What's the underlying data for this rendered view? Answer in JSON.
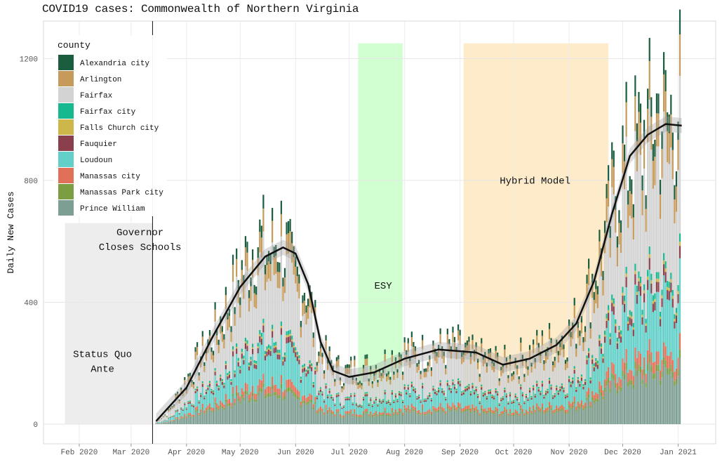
{
  "chart_data": {
    "type": "bar",
    "stacked": true,
    "title": "COVID19 cases: Commonwealth of Northern Virginia",
    "ylabel": "Daily New Cases",
    "xlabel": "",
    "ylim": [
      0,
      1300
    ],
    "xlim": [
      "2020-01-12",
      "2021-01-22"
    ],
    "grid": true,
    "legend_placement": "top-left",
    "legend_title": "county",
    "y_ticks": [
      0,
      400,
      800,
      1200
    ],
    "x_ticks": [
      {
        "date": "2020-02-01",
        "label": "Feb 2020"
      },
      {
        "date": "2020-03-01",
        "label": "Mar 2020"
      },
      {
        "date": "2020-04-01",
        "label": "Apr 2020"
      },
      {
        "date": "2020-05-01",
        "label": "May 2020"
      },
      {
        "date": "2020-06-01",
        "label": "Jun 2020"
      },
      {
        "date": "2020-07-01",
        "label": "Jul 2020"
      },
      {
        "date": "2020-08-01",
        "label": "Aug 2020"
      },
      {
        "date": "2020-09-01",
        "label": "Sep 2020"
      },
      {
        "date": "2020-10-01",
        "label": "Oct 2020"
      },
      {
        "date": "2020-11-01",
        "label": "Nov 2020"
      },
      {
        "date": "2020-12-01",
        "label": "Dec 2020"
      },
      {
        "date": "2021-01-01",
        "label": "Jan 2021"
      }
    ],
    "series": [
      {
        "name": "Alexandria city",
        "color": "#1b5e3f"
      },
      {
        "name": "Arlington",
        "color": "#c59a5b"
      },
      {
        "name": "Fairfax",
        "color": "#d3d3d3"
      },
      {
        "name": "Fairfax city",
        "color": "#17b890"
      },
      {
        "name": "Falls Church city",
        "color": "#cdb64a"
      },
      {
        "name": "Fauquier",
        "color": "#8b3f4d"
      },
      {
        "name": "Loudoun",
        "color": "#62cfc9"
      },
      {
        "name": "Manassas city",
        "color": "#e07058"
      },
      {
        "name": "Manassas Park city",
        "color": "#7b9e42"
      },
      {
        "name": "Prince William",
        "color": "#7d9f93"
      }
    ],
    "daily_totals_weekly": [
      {
        "date": "2020-03-15",
        "total": 10
      },
      {
        "date": "2020-03-22",
        "total": 40
      },
      {
        "date": "2020-03-29",
        "total": 120
      },
      {
        "date": "2020-04-05",
        "total": 190
      },
      {
        "date": "2020-04-12",
        "total": 260
      },
      {
        "date": "2020-04-19",
        "total": 330
      },
      {
        "date": "2020-04-26",
        "total": 430
      },
      {
        "date": "2020-05-03",
        "total": 520
      },
      {
        "date": "2020-05-10",
        "total": 620
      },
      {
        "date": "2020-05-17",
        "total": 570
      },
      {
        "date": "2020-05-24",
        "total": 640
      },
      {
        "date": "2020-05-31",
        "total": 480
      },
      {
        "date": "2020-06-07",
        "total": 470
      },
      {
        "date": "2020-06-14",
        "total": 260
      },
      {
        "date": "2020-06-21",
        "total": 200
      },
      {
        "date": "2020-06-28",
        "total": 170
      },
      {
        "date": "2020-07-05",
        "total": 190
      },
      {
        "date": "2020-07-12",
        "total": 190
      },
      {
        "date": "2020-07-19",
        "total": 200
      },
      {
        "date": "2020-07-26",
        "total": 230
      },
      {
        "date": "2020-08-02",
        "total": 250
      },
      {
        "date": "2020-08-09",
        "total": 230
      },
      {
        "date": "2020-08-16",
        "total": 260
      },
      {
        "date": "2020-08-23",
        "total": 250
      },
      {
        "date": "2020-08-30",
        "total": 260
      },
      {
        "date": "2020-09-06",
        "total": 230
      },
      {
        "date": "2020-09-13",
        "total": 220
      },
      {
        "date": "2020-09-20",
        "total": 210
      },
      {
        "date": "2020-09-27",
        "total": 200
      },
      {
        "date": "2020-10-04",
        "total": 220
      },
      {
        "date": "2020-10-11",
        "total": 240
      },
      {
        "date": "2020-10-18",
        "total": 260
      },
      {
        "date": "2020-10-25",
        "total": 280
      },
      {
        "date": "2020-11-01",
        "total": 300
      },
      {
        "date": "2020-11-08",
        "total": 380
      },
      {
        "date": "2020-11-15",
        "total": 500
      },
      {
        "date": "2020-11-22",
        "total": 640
      },
      {
        "date": "2020-11-29",
        "total": 850
      },
      {
        "date": "2020-12-06",
        "total": 900
      },
      {
        "date": "2020-12-13",
        "total": 950
      },
      {
        "date": "2020-12-20",
        "total": 1050
      },
      {
        "date": "2020-12-27",
        "total": 1000
      },
      {
        "date": "2021-01-03",
        "total": 1100
      }
    ],
    "smooth_trend": [
      {
        "date": "2020-03-15",
        "value": 10
      },
      {
        "date": "2020-04-01",
        "value": 120
      },
      {
        "date": "2020-04-15",
        "value": 280
      },
      {
        "date": "2020-05-01",
        "value": 450
      },
      {
        "date": "2020-05-15",
        "value": 550
      },
      {
        "date": "2020-05-25",
        "value": 580
      },
      {
        "date": "2020-06-01",
        "value": 560
      },
      {
        "date": "2020-06-08",
        "value": 460
      },
      {
        "date": "2020-06-15",
        "value": 270
      },
      {
        "date": "2020-06-22",
        "value": 175
      },
      {
        "date": "2020-07-01",
        "value": 155
      },
      {
        "date": "2020-07-15",
        "value": 170
      },
      {
        "date": "2020-08-01",
        "value": 215
      },
      {
        "date": "2020-08-20",
        "value": 245
      },
      {
        "date": "2020-09-10",
        "value": 235
      },
      {
        "date": "2020-09-25",
        "value": 195
      },
      {
        "date": "2020-10-10",
        "value": 215
      },
      {
        "date": "2020-10-25",
        "value": 260
      },
      {
        "date": "2020-11-05",
        "value": 330
      },
      {
        "date": "2020-11-15",
        "value": 470
      },
      {
        "date": "2020-11-25",
        "value": 690
      },
      {
        "date": "2020-12-05",
        "value": 880
      },
      {
        "date": "2020-12-15",
        "value": 950
      },
      {
        "date": "2020-12-25",
        "value": 985
      },
      {
        "date": "2021-01-03",
        "value": 980
      }
    ],
    "annotations": [
      {
        "label_lines": [
          "Status Quo",
          "Ante"
        ],
        "start": "2020-01-24",
        "end": "2020-03-13",
        "color": "#ebebeb"
      },
      {
        "label_lines": [
          "Governor",
          "Closes Schools"
        ],
        "date": "2020-03-13"
      },
      {
        "label_lines": [
          "ESY"
        ],
        "start": "2020-07-06",
        "end": "2020-07-31",
        "color": "#ccffcc"
      },
      {
        "label_lines": [
          "Hybrid Model"
        ],
        "start": "2020-09-03",
        "end": "2020-11-23",
        "color": "#fde9c4"
      }
    ]
  }
}
